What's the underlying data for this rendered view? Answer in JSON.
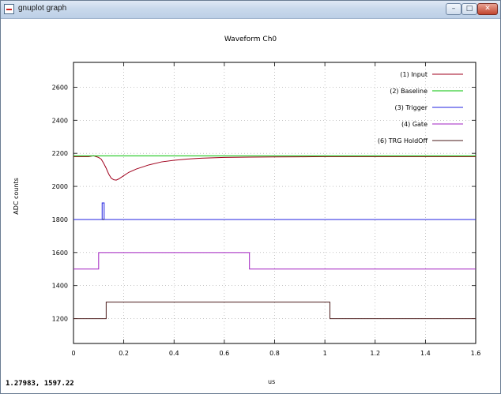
{
  "window": {
    "title": "gnuplot graph",
    "minimize_glyph": "–",
    "maximize_glyph": "□",
    "close_glyph": "✕"
  },
  "status_text": "1.27983, 1597.22",
  "chart_data": {
    "type": "line",
    "title": "Waveform Ch0",
    "xlabel": "us",
    "ylabel": "ADC counts",
    "xlim": [
      0,
      1.6
    ],
    "ylim": [
      1050,
      2750
    ],
    "xticks": [
      0,
      0.2,
      0.4,
      0.6,
      0.8,
      1,
      1.2,
      1.4,
      1.6
    ],
    "yticks": [
      1200,
      1400,
      1600,
      1800,
      2000,
      2200,
      2400,
      2600
    ],
    "grid": true,
    "legend_position": "top-right",
    "series": [
      {
        "name": "(1) Input",
        "color": "#a0001c",
        "x": [
          0,
          0.06,
          0.08,
          0.09,
          0.1,
          0.11,
          0.12,
          0.13,
          0.14,
          0.15,
          0.16,
          0.17,
          0.18,
          0.2,
          0.22,
          0.25,
          0.3,
          0.35,
          0.4,
          0.45,
          0.5,
          0.6,
          0.7,
          0.8,
          0.9,
          1.0,
          1.2,
          1.4,
          1.6
        ],
        "y": [
          2180,
          2180,
          2185,
          2180,
          2175,
          2165,
          2140,
          2110,
          2075,
          2050,
          2040,
          2038,
          2045,
          2065,
          2085,
          2105,
          2130,
          2148,
          2158,
          2165,
          2170,
          2175,
          2177,
          2178,
          2179,
          2180,
          2180,
          2180,
          2180
        ]
      },
      {
        "name": "(2) Baseline",
        "color": "#00c000",
        "x": [
          0,
          1.6
        ],
        "y": [
          2185,
          2185
        ]
      },
      {
        "name": "(3) Trigger",
        "color": "#2020e0",
        "x": [
          0,
          0.114,
          0.114,
          0.122,
          0.122,
          1.6
        ],
        "y": [
          1800,
          1800,
          1900,
          1900,
          1800,
          1800
        ]
      },
      {
        "name": "(4) Gate",
        "color": "#a020c0",
        "x": [
          0,
          0.1,
          0.1,
          0.7,
          0.7,
          1.6
        ],
        "y": [
          1500,
          1500,
          1600,
          1600,
          1500,
          1500
        ]
      },
      {
        "name": "(6) TRG HoldOff",
        "color": "#4a1a1a",
        "x": [
          0,
          0.13,
          0.13,
          1.02,
          1.02,
          1.6
        ],
        "y": [
          1200,
          1200,
          1300,
          1300,
          1200,
          1200
        ]
      }
    ],
    "legend": [
      "(1) Input",
      "(2) Baseline",
      "(3) Trigger",
      "(4) Gate",
      "(6) TRG HoldOff"
    ],
    "extra_lines": [
      {
        "name": "trigger-base",
        "color": "#000000",
        "x": [
          0,
          1.6
        ],
        "y": [
          1800,
          1800
        ]
      }
    ]
  }
}
